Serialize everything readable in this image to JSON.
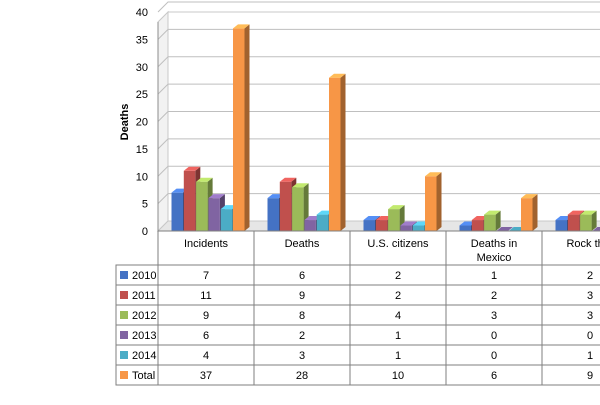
{
  "chart_data": {
    "type": "bar",
    "title": "",
    "xlabel": "",
    "ylabel": "Deaths",
    "ylim": [
      0,
      40
    ],
    "yticks": [
      "0",
      "5",
      "10",
      "15",
      "20",
      "25",
      "30",
      "35",
      "40"
    ],
    "categories": [
      "Incidents",
      "Deaths",
      "U.S. citizens",
      "Deaths in Mexico",
      "Rock throwing"
    ],
    "series": [
      {
        "name": "2010",
        "color": "#4472C4",
        "values": [
          7,
          6,
          2,
          1,
          2
        ]
      },
      {
        "name": "2011",
        "color": "#C0504D",
        "values": [
          11,
          9,
          2,
          2,
          3
        ]
      },
      {
        "name": "2012",
        "color": "#9BBB59",
        "values": [
          9,
          8,
          4,
          3,
          3
        ]
      },
      {
        "name": "2013",
        "color": "#8064A2",
        "values": [
          6,
          2,
          1,
          0,
          0
        ]
      },
      {
        "name": "2014",
        "color": "#4BACC6",
        "values": [
          4,
          3,
          1,
          0,
          1
        ]
      },
      {
        "name": "Total",
        "color": "#F79646",
        "values": [
          37,
          28,
          10,
          6,
          9
        ]
      }
    ],
    "category_labels_display": [
      [
        "Incidents"
      ],
      [
        "Deaths"
      ],
      [
        "U.S. citizens"
      ],
      [
        "Deaths in",
        "Mexico"
      ],
      [
        "Rock thro"
      ]
    ],
    "legend": "data-table"
  }
}
